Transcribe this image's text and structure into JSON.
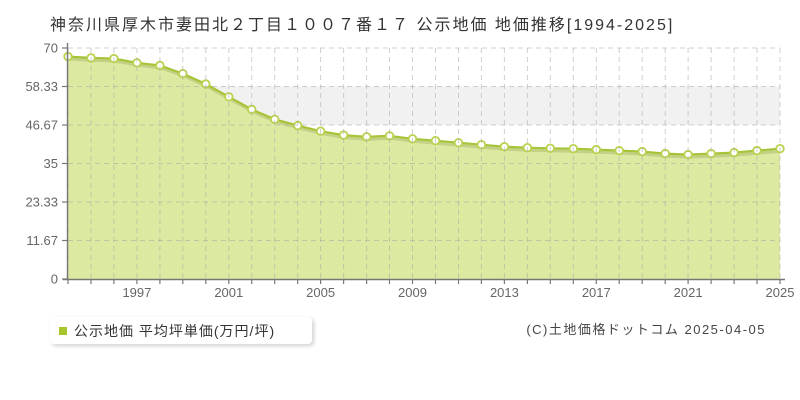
{
  "title": "神奈川県厚木市妻田北２丁目１００７番１７ 公示地価 地価推移[1994-2025]",
  "legend": {
    "label": "公示地価 平均坪単価(万円/坪)"
  },
  "copyright": "(C)土地価格ドットコム 2025-04-05",
  "colors": {
    "fill": "#dce9a0",
    "line": "#a6c437",
    "marker_fill": "#ffffff",
    "marker_stroke": "#b9d24f",
    "legend_marker": "#a6c62c",
    "grid": "#aaaaaa",
    "band": "#f1f1f1",
    "axis": "#777777",
    "tick_text": "#666666",
    "title_text": "#333333"
  },
  "chart_data": {
    "type": "area",
    "title": "神奈川県厚木市妻田北２丁目１００７番１７ 公示地価 地価推移[1994-2025]",
    "xlabel": "",
    "ylabel": "平均坪単価(万円/坪)",
    "x": [
      1994,
      1995,
      1996,
      1997,
      1998,
      1999,
      2000,
      2001,
      2002,
      2003,
      2004,
      2005,
      2006,
      2007,
      2008,
      2009,
      2010,
      2011,
      2012,
      2013,
      2014,
      2015,
      2016,
      2017,
      2018,
      2019,
      2020,
      2021,
      2022,
      2023,
      2024,
      2025
    ],
    "series": [
      {
        "name": "公示地価 平均坪単価(万円/坪)",
        "values": [
          67.4,
          67.0,
          66.8,
          65.5,
          64.7,
          62.2,
          59.1,
          55.2,
          51.4,
          48.4,
          46.5,
          44.8,
          43.6,
          43.1,
          43.4,
          42.5,
          41.9,
          41.3,
          40.7,
          40.1,
          39.8,
          39.6,
          39.5,
          39.2,
          38.9,
          38.6,
          38.0,
          37.7,
          38.0,
          38.3,
          38.9,
          39.5
        ]
      }
    ],
    "ylim": [
      0,
      70
    ],
    "yticks": [
      0,
      11.67,
      23.33,
      35,
      46.67,
      58.33,
      70
    ],
    "ytick_labels": [
      "0",
      "11.67",
      "23.33",
      "35",
      "46.67",
      "58.33",
      "70"
    ],
    "xticks_labeled": [
      1997,
      2001,
      2005,
      2009,
      2013,
      2017,
      2021,
      2025
    ],
    "grid": "dashed vertical line per year, dashed horizontal line per y-tick, alternating gray bands",
    "legend_position": "bottom-left, outside plot"
  }
}
